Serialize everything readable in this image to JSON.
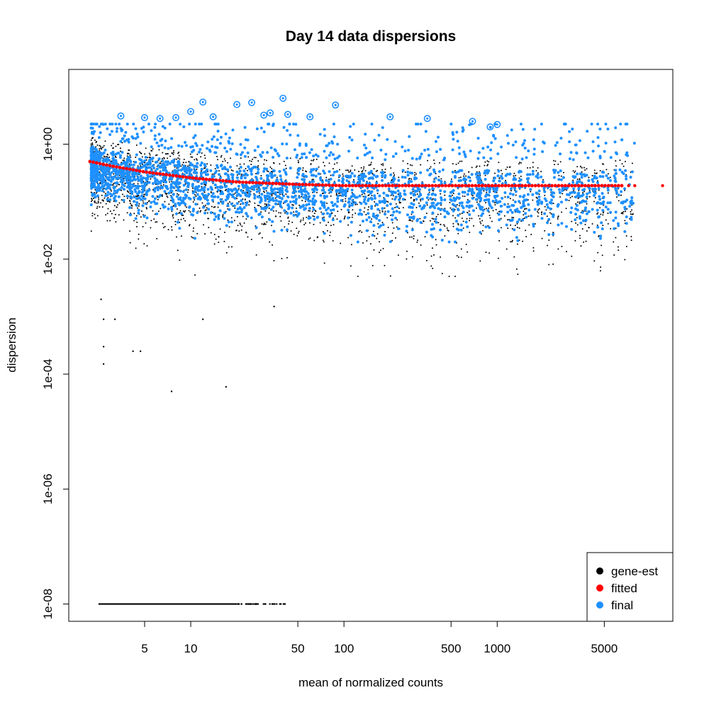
{
  "chart_data": {
    "type": "scatter",
    "title": "Day 14 data dispersions",
    "xlabel": "mean of normalized counts",
    "ylabel": "dispersion",
    "x_scale": "log",
    "y_scale": "log",
    "xlim": [
      1.6,
      14000
    ],
    "ylim": [
      5e-09,
      20
    ],
    "x_ticks": [
      5,
      10,
      50,
      100,
      500,
      1000,
      5000
    ],
    "x_tick_labels": [
      "5",
      "10",
      "50",
      "100",
      "500",
      "1000",
      "5000"
    ],
    "y_ticks": [
      1,
      0.01,
      0.0001,
      1e-06,
      1e-08
    ],
    "y_tick_labels": [
      "1e+00",
      "1e-02",
      "1e-04",
      "1e-06",
      "1e-08"
    ],
    "grid": false,
    "legend_position": "bottom-right",
    "series": [
      {
        "name": "gene-est",
        "color": "#000000",
        "shape": "small-dot"
      },
      {
        "name": "fitted",
        "color": "#ff0000",
        "shape": "dot"
      },
      {
        "name": "final",
        "color": "#1e90ff",
        "shape": "dot"
      }
    ],
    "fitted_curve": {
      "x": [
        2.2,
        3,
        5,
        10,
        20,
        50,
        100,
        500,
        1000,
        5000,
        12000
      ],
      "y": [
        0.5,
        0.42,
        0.33,
        0.26,
        0.22,
        0.2,
        0.19,
        0.19,
        0.19,
        0.19,
        0.19
      ]
    },
    "outlier_points": {
      "x": [
        3.5,
        5,
        6.3,
        8,
        10,
        12,
        14,
        20,
        25,
        30,
        33,
        40,
        43,
        60,
        88,
        200,
        350,
        690,
        900,
        1000
      ],
      "y": [
        3.1,
        2.9,
        2.8,
        2.9,
        3.7,
        5.4,
        3.0,
        4.9,
        5.3,
        3.2,
        3.5,
        6.3,
        3.3,
        3.0,
        4.8,
        3.0,
        2.8,
        2.5,
        2.0,
        2.2
      ]
    },
    "low_gene_est_points": {
      "x": [
        2.6,
        2.7,
        2.7,
        2.7,
        3.2,
        4.2,
        4.7,
        7.5,
        12,
        17,
        35
      ],
      "y": [
        0.002,
        0.0009,
        0.0003,
        0.00015,
        0.0009,
        0.00025,
        0.00025,
        5e-05,
        0.0009,
        6e-05,
        0.0015
      ]
    },
    "floor_gene_est": {
      "y": 1e-08,
      "x_range": [
        2.5,
        42
      ]
    }
  }
}
